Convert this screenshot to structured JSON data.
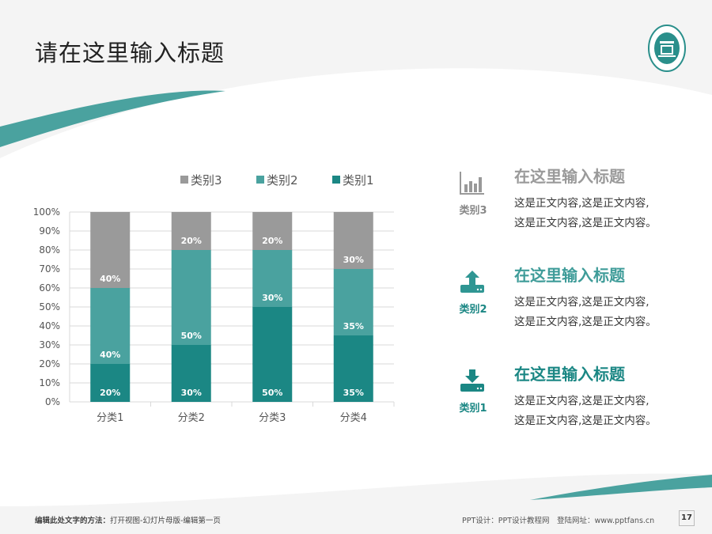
{
  "header": {
    "title": "请在这里输入标题"
  },
  "colors": {
    "cat1": "#1b8784",
    "cat2": "#4aa29f",
    "cat3": "#9a9a9a"
  },
  "chart_data": {
    "type": "bar",
    "stacked": "percent",
    "categories": [
      "分类1",
      "分类2",
      "分类3",
      "分类4"
    ],
    "series": [
      {
        "name": "类别1",
        "values": [
          20,
          30,
          50,
          35
        ],
        "labels": [
          "20%",
          "30%",
          "50%",
          "35%"
        ]
      },
      {
        "name": "类别2",
        "values": [
          40,
          50,
          30,
          35
        ],
        "labels": [
          "40%",
          "50%",
          "30%",
          "35%"
        ]
      },
      {
        "name": "类别3",
        "values": [
          40,
          20,
          20,
          30
        ],
        "labels": [
          "40%",
          "20%",
          "20%",
          "30%"
        ]
      }
    ],
    "legend_order": [
      "类别3",
      "类别2",
      "类别1"
    ],
    "legend": "top",
    "ylim": [
      0,
      100
    ],
    "yticks": [
      "0%",
      "10%",
      "20%",
      "30%",
      "40%",
      "50%",
      "60%",
      "70%",
      "80%",
      "90%",
      "100%"
    ],
    "grid": true
  },
  "items": [
    {
      "cat": "类别3",
      "icon": "bar-chart-icon",
      "heading": "在这里输入标题",
      "line1": "这是正文内容,这是正文内容,",
      "line2": "这是正文内容,这是正文内容。"
    },
    {
      "cat": "类别2",
      "icon": "upload-icon",
      "heading": "在这里输入标题",
      "line1": "这是正文内容,这是正文内容,",
      "line2": "这是正文内容,这是正文内容。"
    },
    {
      "cat": "类别1",
      "icon": "download-icon",
      "heading": "在这里输入标题",
      "line1": "这是正文内容,这是正文内容,",
      "line2": "这是正文内容,这是正文内容。"
    }
  ],
  "footer": {
    "left_bold": "编辑此处文字的方法：",
    "left": "打开视图-幻灯片母版-编辑第一页",
    "right": "PPT设计：PPT设计教程网　登陆网址：www.pptfans.cn",
    "page": "17"
  }
}
